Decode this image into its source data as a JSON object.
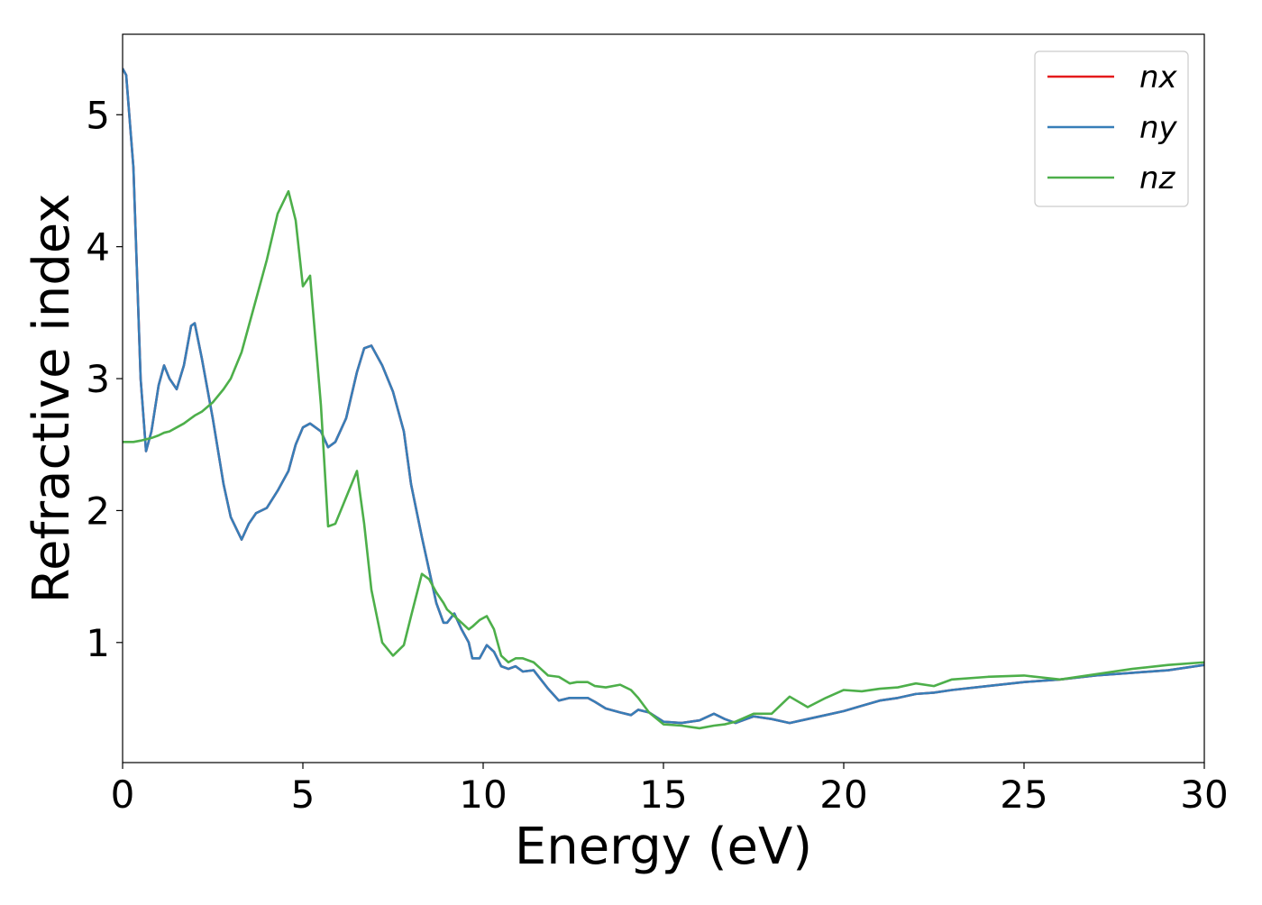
{
  "chart_data": {
    "type": "line",
    "xlabel": "Energy (eV)",
    "ylabel": "Refractive index",
    "x": [
      0,
      0.1,
      0.3,
      0.5,
      0.65,
      0.8,
      1.0,
      1.15,
      1.3,
      1.5,
      1.7,
      1.9,
      2.0,
      2.2,
      2.5,
      2.8,
      3.0,
      3.3,
      3.5,
      3.7,
      4.0,
      4.3,
      4.6,
      4.8,
      5.0,
      5.2,
      5.5,
      5.7,
      5.9,
      6.2,
      6.5,
      6.7,
      6.9,
      7.2,
      7.5,
      7.8,
      8.0,
      8.3,
      8.5,
      8.7,
      8.9,
      9.0,
      9.2,
      9.4,
      9.6,
      9.7,
      9.9,
      10.1,
      10.3,
      10.5,
      10.7,
      10.9,
      11.1,
      11.4,
      11.6,
      11.8,
      12.1,
      12.4,
      12.6,
      12.9,
      13.1,
      13.4,
      13.8,
      14.1,
      14.3,
      14.6,
      15.0,
      15.5,
      16.0,
      16.4,
      16.7,
      17.0,
      17.5,
      18.0,
      18.5,
      19.0,
      19.5,
      20.0,
      20.5,
      21.0,
      21.5,
      22.0,
      22.5,
      23.0,
      24,
      25,
      26,
      27,
      28,
      29,
      30
    ],
    "series": [
      {
        "name": "nx",
        "color": "#e41a1c",
        "values": [
          5.35,
          5.3,
          4.6,
          3.0,
          2.45,
          2.6,
          2.95,
          3.1,
          3.0,
          2.92,
          3.1,
          3.4,
          3.42,
          3.15,
          2.7,
          2.2,
          1.95,
          1.78,
          1.9,
          1.98,
          2.02,
          2.15,
          2.3,
          2.5,
          2.63,
          2.66,
          2.6,
          2.48,
          2.52,
          2.7,
          3.05,
          3.23,
          3.25,
          3.1,
          2.9,
          2.6,
          2.2,
          1.8,
          1.55,
          1.3,
          1.15,
          1.15,
          1.22,
          1.1,
          1.0,
          0.88,
          0.88,
          0.98,
          0.93,
          0.82,
          0.8,
          0.82,
          0.78,
          0.79,
          0.72,
          0.65,
          0.56,
          0.58,
          0.58,
          0.58,
          0.55,
          0.5,
          0.47,
          0.45,
          0.49,
          0.47,
          0.4,
          0.39,
          0.41,
          0.46,
          0.42,
          0.39,
          0.44,
          0.42,
          0.39,
          0.42,
          0.45,
          0.48,
          0.52,
          0.56,
          0.58,
          0.61,
          0.62,
          0.64,
          0.67,
          0.7,
          0.72,
          0.75,
          0.77,
          0.79,
          0.83
        ]
      },
      {
        "name": "ny",
        "color": "#377eb8",
        "values": [
          5.35,
          5.3,
          4.6,
          3.0,
          2.45,
          2.6,
          2.95,
          3.1,
          3.0,
          2.92,
          3.1,
          3.4,
          3.42,
          3.15,
          2.7,
          2.2,
          1.95,
          1.78,
          1.9,
          1.98,
          2.02,
          2.15,
          2.3,
          2.5,
          2.63,
          2.66,
          2.6,
          2.48,
          2.52,
          2.7,
          3.05,
          3.23,
          3.25,
          3.1,
          2.9,
          2.6,
          2.2,
          1.8,
          1.55,
          1.3,
          1.15,
          1.15,
          1.22,
          1.1,
          1.0,
          0.88,
          0.88,
          0.98,
          0.93,
          0.82,
          0.8,
          0.82,
          0.78,
          0.79,
          0.72,
          0.65,
          0.56,
          0.58,
          0.58,
          0.58,
          0.55,
          0.5,
          0.47,
          0.45,
          0.49,
          0.47,
          0.4,
          0.39,
          0.41,
          0.46,
          0.42,
          0.39,
          0.44,
          0.42,
          0.39,
          0.42,
          0.45,
          0.48,
          0.52,
          0.56,
          0.58,
          0.61,
          0.62,
          0.64,
          0.67,
          0.7,
          0.72,
          0.75,
          0.77,
          0.79,
          0.83
        ]
      },
      {
        "name": "nz",
        "color": "#4daf4a",
        "values": [
          2.52,
          2.52,
          2.52,
          2.53,
          2.54,
          2.55,
          2.57,
          2.59,
          2.6,
          2.63,
          2.66,
          2.7,
          2.72,
          2.75,
          2.82,
          2.92,
          3.0,
          3.2,
          3.4,
          3.6,
          3.9,
          4.25,
          4.42,
          4.2,
          3.7,
          3.78,
          2.8,
          1.88,
          1.9,
          2.1,
          2.3,
          1.9,
          1.4,
          1.0,
          0.9,
          0.98,
          1.2,
          1.52,
          1.48,
          1.38,
          1.3,
          1.25,
          1.2,
          1.15,
          1.1,
          1.12,
          1.17,
          1.2,
          1.1,
          0.9,
          0.85,
          0.88,
          0.88,
          0.85,
          0.8,
          0.75,
          0.74,
          0.69,
          0.7,
          0.7,
          0.67,
          0.66,
          0.68,
          0.64,
          0.58,
          0.47,
          0.38,
          0.37,
          0.35,
          0.37,
          0.38,
          0.4,
          0.46,
          0.46,
          0.59,
          0.51,
          0.58,
          0.64,
          0.63,
          0.65,
          0.66,
          0.69,
          0.67,
          0.72,
          0.74,
          0.75,
          0.72,
          0.76,
          0.8,
          0.83,
          0.85
        ]
      }
    ],
    "xlim": [
      0,
      30
    ],
    "xticks": [
      0,
      5,
      10,
      15,
      20,
      25,
      30
    ],
    "ylim": [
      0.09,
      5.61
    ],
    "yticks": [
      1,
      2,
      3,
      4,
      5
    ],
    "grid": false,
    "legend": "upper right"
  }
}
